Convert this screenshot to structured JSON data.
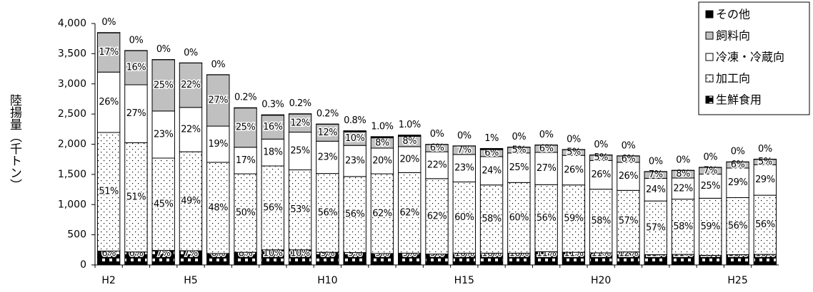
{
  "chart_data": {
    "type": "stacked_bar",
    "y_label": "陸揚量（千トン）",
    "categories": [
      "H2",
      null,
      null,
      "H5",
      null,
      null,
      null,
      null,
      "H10",
      null,
      null,
      null,
      null,
      "H15",
      null,
      null,
      null,
      null,
      "H20",
      null,
      null,
      null,
      null,
      "H25",
      null
    ],
    "ylim": [
      0,
      4000
    ],
    "yticks": [
      0,
      500,
      {
        "value": 1000,
        "label": "1,000"
      },
      {
        "value": 1500,
        "label": "1,500"
      },
      {
        "value": 2000,
        "label": "2,000"
      },
      {
        "value": 2500,
        "label": "2,500"
      },
      {
        "value": 3000,
        "label": "3,000"
      },
      {
        "value": 3500,
        "label": "3,500"
      },
      {
        "value": 4000,
        "label": "4,000"
      }
    ],
    "series": [
      {
        "name": "生鮮食用",
        "color": "#000000",
        "pattern": "squares",
        "values": [
          230,
          215,
          240,
          235,
          190,
          210,
          250,
          250,
          210,
          205,
          190,
          195,
          180,
          195,
          195,
          195,
          220,
          210,
          200,
          215,
          170,
          175,
          160,
          170,
          175
        ],
        "labels": [
          "6%",
          "6%",
          "7%",
          "7%",
          "6%",
          "8%",
          "10%",
          "10%",
          "9%",
          "9%",
          "9%",
          "9%",
          "9%",
          "10%",
          "10%",
          "10%",
          "11%",
          "11%",
          "11%",
          "12%",
          "11%",
          "11%",
          "10%",
          "10%",
          "10%"
        ]
      },
      {
        "name": "加工向",
        "color": "#ffffff",
        "pattern": "dots",
        "values": [
          1965,
          1810,
          1530,
          1640,
          1510,
          1300,
          1390,
          1325,
          1305,
          1260,
          1320,
          1335,
          1250,
          1180,
          1130,
          1170,
          1110,
          1115,
          1055,
          1020,
          890,
          915,
          945,
          945,
          980
        ],
        "labels": [
          "51%",
          "51%",
          "45%",
          "49%",
          "48%",
          "50%",
          "56%",
          "53%",
          "56%",
          "56%",
          "62%",
          "62%",
          "62%",
          "60%",
          "58%",
          "60%",
          "56%",
          "59%",
          "58%",
          "57%",
          "57%",
          "58%",
          "59%",
          "56%",
          "56%"
        ]
      },
      {
        "name": "冷凍・冷蔵向",
        "color": "#ffffff",
        "pattern": "none",
        "values": [
          1000,
          960,
          780,
          735,
          600,
          440,
          445,
          625,
          535,
          515,
          425,
          430,
          445,
          455,
          470,
          490,
          535,
          490,
          475,
          465,
          375,
          350,
          400,
          490,
          505
        ],
        "labels": [
          "26%",
          "27%",
          "23%",
          "22%",
          "19%",
          "17%",
          "18%",
          "25%",
          "23%",
          "23%",
          "20%",
          "20%",
          "22%",
          "23%",
          "24%",
          "25%",
          "27%",
          "26%",
          "26%",
          "26%",
          "24%",
          "22%",
          "25%",
          "29%",
          "29%"
        ]
      },
      {
        "name": "飼料向",
        "color": "#c0c0c0",
        "pattern": "none",
        "values": [
          650,
          565,
          850,
          735,
          850,
          650,
          395,
          300,
          280,
          225,
          170,
          170,
          120,
          140,
          115,
          95,
          120,
          95,
          90,
          105,
          110,
          125,
          110,
          100,
          90
        ],
        "labels": [
          "17%",
          "16%",
          "25%",
          "22%",
          "27%",
          "25%",
          "16%",
          "12%",
          "12%",
          "10%",
          "8%",
          "8%",
          "6%",
          "7%",
          "6%",
          "5%",
          "6%",
          "5%",
          "5%",
          "6%",
          "7%",
          "8%",
          "7%",
          "6%",
          "5%"
        ]
      },
      {
        "name": "その他",
        "color": "#000000",
        "pattern": "none",
        "values": [
          5,
          3,
          3,
          3,
          3,
          5,
          8,
          5,
          5,
          18,
          21,
          22,
          3,
          3,
          20,
          3,
          3,
          3,
          3,
          3,
          3,
          3,
          3,
          3,
          3
        ],
        "labels": [
          "0%",
          "0%",
          "0%",
          "0%",
          "0%",
          "0.2%",
          "0.3%",
          "0.2%",
          "0.2%",
          "0.8%",
          "1.0%",
          "1.0%",
          "0%",
          "0%",
          "1%",
          "0%",
          "0%",
          "0%",
          "0%",
          "0%",
          "0%",
          "0%",
          "0%",
          "0%",
          "0%"
        ]
      }
    ]
  }
}
